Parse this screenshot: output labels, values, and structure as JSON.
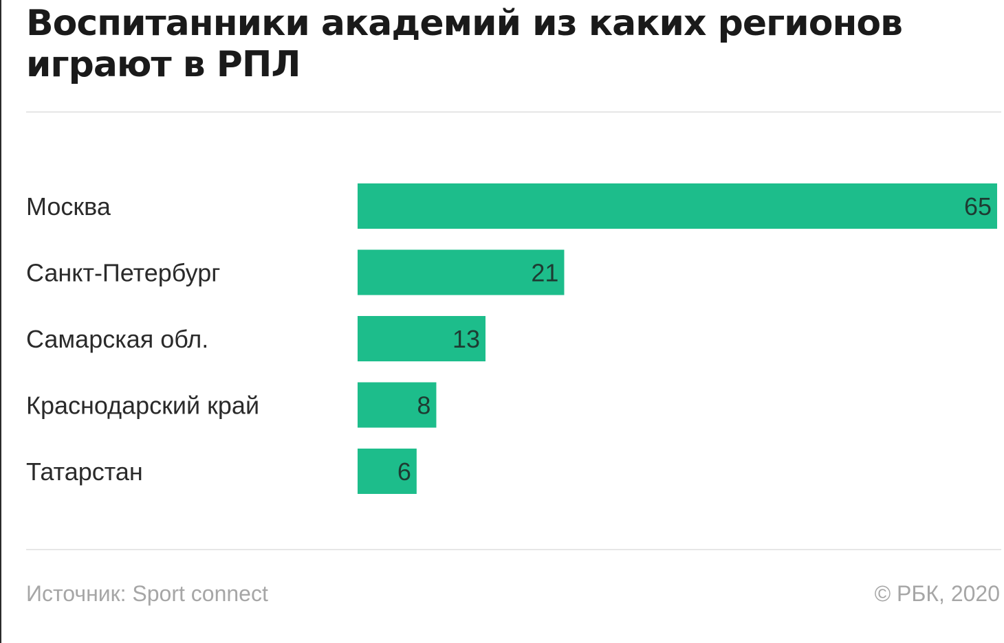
{
  "title": "Воспитанники академий из каких регионов играют в РПЛ",
  "footer": {
    "source": "Источник: Sport connect",
    "copyright": "© РБК, 2020"
  },
  "colors": {
    "bar": "#1dbd8b",
    "text": "#2a2a2a",
    "muted": "#a6a6a6"
  },
  "chart_data": {
    "type": "bar",
    "orientation": "horizontal",
    "title": "Воспитанники академий из каких регионов играют в РПЛ",
    "categories": [
      "Москва",
      "Санкт-Петербург",
      "Самарская обл.",
      "Краснодарский край",
      "Татарстан"
    ],
    "values": [
      65,
      21,
      13,
      8,
      6
    ],
    "xlim": [
      0,
      65
    ],
    "grid": false,
    "legend": "none",
    "data_labels": "inside-end"
  }
}
